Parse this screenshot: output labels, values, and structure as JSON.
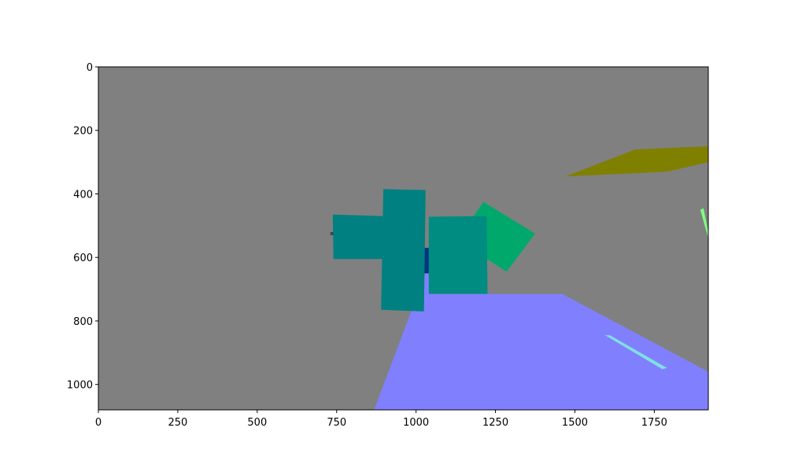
{
  "chart_data": {
    "type": "image",
    "title": "",
    "xlabel": "",
    "ylabel": "",
    "xlim": [
      0,
      1920
    ],
    "ylim": [
      1080,
      0
    ],
    "x_ticks": [
      0,
      250,
      500,
      750,
      1000,
      1250,
      1500,
      1750
    ],
    "y_ticks": [
      0,
      200,
      400,
      600,
      800,
      1000
    ],
    "background_color": "#808080",
    "segments": [
      {
        "name": "olive-plane",
        "color": "#808000",
        "points": [
          [
            1470,
            345
          ],
          [
            1690,
            260
          ],
          [
            1920,
            250
          ],
          [
            1920,
            300
          ],
          [
            1790,
            330
          ]
        ]
      },
      {
        "name": "green-sliver",
        "color": "#80ff80",
        "points": [
          [
            1895,
            450
          ],
          [
            1905,
            445
          ],
          [
            1920,
            520
          ],
          [
            1920,
            540
          ]
        ]
      },
      {
        "name": "blue-floor",
        "color": "#8080ff",
        "points": [
          [
            868,
            1080
          ],
          [
            1030,
            650
          ],
          [
            1210,
            650
          ],
          [
            1225,
            715
          ],
          [
            1460,
            715
          ],
          [
            1920,
            960
          ],
          [
            1920,
            1080
          ]
        ]
      },
      {
        "name": "cyan-strip",
        "color": "#80e0e0",
        "points": [
          [
            1595,
            845
          ],
          [
            1610,
            845
          ],
          [
            1790,
            948
          ],
          [
            1775,
            952
          ]
        ]
      },
      {
        "name": "green-rotated-box",
        "color": "#00a86b",
        "points": [
          [
            1212,
            425
          ],
          [
            1375,
            525
          ],
          [
            1285,
            645
          ],
          [
            1130,
            545
          ]
        ]
      },
      {
        "name": "teal-left-box",
        "color": "#008080",
        "points": [
          [
            738,
            465
          ],
          [
            900,
            470
          ],
          [
            900,
            605
          ],
          [
            740,
            605
          ]
        ]
      },
      {
        "name": "dark-blue-gap",
        "color": "#003580",
        "points": [
          [
            1020,
            570
          ],
          [
            1045,
            570
          ],
          [
            1045,
            650
          ],
          [
            1020,
            650
          ]
        ]
      },
      {
        "name": "teal-center-box",
        "color": "#008080",
        "points": [
          [
            897,
            385
          ],
          [
            1030,
            388
          ],
          [
            1025,
            770
          ],
          [
            890,
            765
          ]
        ]
      },
      {
        "name": "teal-right-box",
        "color": "#008c80",
        "points": [
          [
            1040,
            472
          ],
          [
            1222,
            470
          ],
          [
            1225,
            715
          ],
          [
            1040,
            715
          ]
        ]
      },
      {
        "name": "dark-left-edge",
        "color": "#2a5060",
        "points": [
          [
            730,
            520
          ],
          [
            740,
            520
          ],
          [
            740,
            530
          ],
          [
            730,
            530
          ]
        ]
      }
    ]
  }
}
